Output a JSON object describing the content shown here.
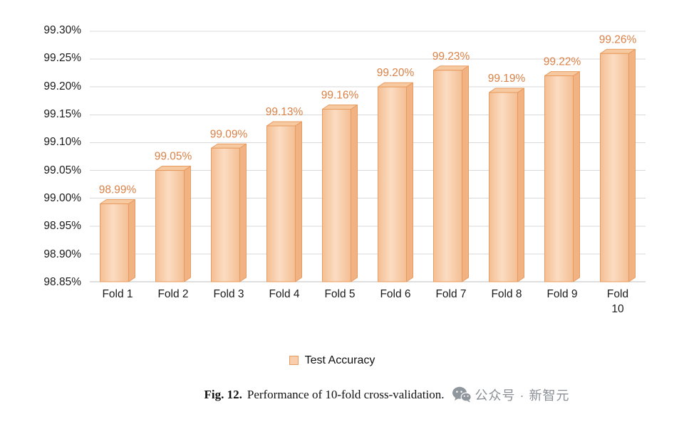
{
  "page": {
    "background": "#ffffff"
  },
  "chart_data": {
    "type": "bar",
    "style": "3d-column",
    "title": "Performance of 10-fold cross-validation",
    "categories": [
      "Fold 1",
      "Fold 2",
      "Fold 3",
      "Fold 4",
      "Fold 5",
      "Fold 6",
      "Fold 7",
      "Fold 8",
      "Fold 9",
      "Fold 10"
    ],
    "series": [
      {
        "name": "Test Accuracy",
        "values": [
          98.99,
          99.05,
          99.09,
          99.13,
          99.16,
          99.2,
          99.23,
          99.19,
          99.22,
          99.26
        ]
      }
    ],
    "data_labels": [
      "98.99%",
      "99.05%",
      "99.09%",
      "99.13%",
      "99.16%",
      "99.20%",
      "99.23%",
      "99.19%",
      "99.22%",
      "99.26%"
    ],
    "ylim": [
      98.85,
      99.3
    ],
    "y_tick_step": 0.05,
    "y_tick_labels": [
      "99.30%",
      "99.25%",
      "99.20%",
      "99.15%",
      "99.10%",
      "99.05%",
      "99.00%",
      "98.95%",
      "98.90%",
      "98.85%"
    ],
    "grid": true,
    "legend": {
      "label": "Test Accuracy",
      "position": "bottom"
    },
    "colors": {
      "bar_fill": "#F9CEAC",
      "bar_fill_edge": "#F4BE93",
      "bar_fill_center": "#FBDCC2",
      "bar_top": "#F7C9A1",
      "bar_side": "#F1B284",
      "bar_border": "#E89B5E",
      "data_label": "#DC8045",
      "gridline": "#D9D9D9",
      "axis_line": "#BFBFBF",
      "axis_text": "#1A1A1A"
    }
  },
  "caption": {
    "label": "Fig. 12.",
    "text": "Performance of 10-fold cross-validation.",
    "watermark": "公众号 · 新智元"
  }
}
